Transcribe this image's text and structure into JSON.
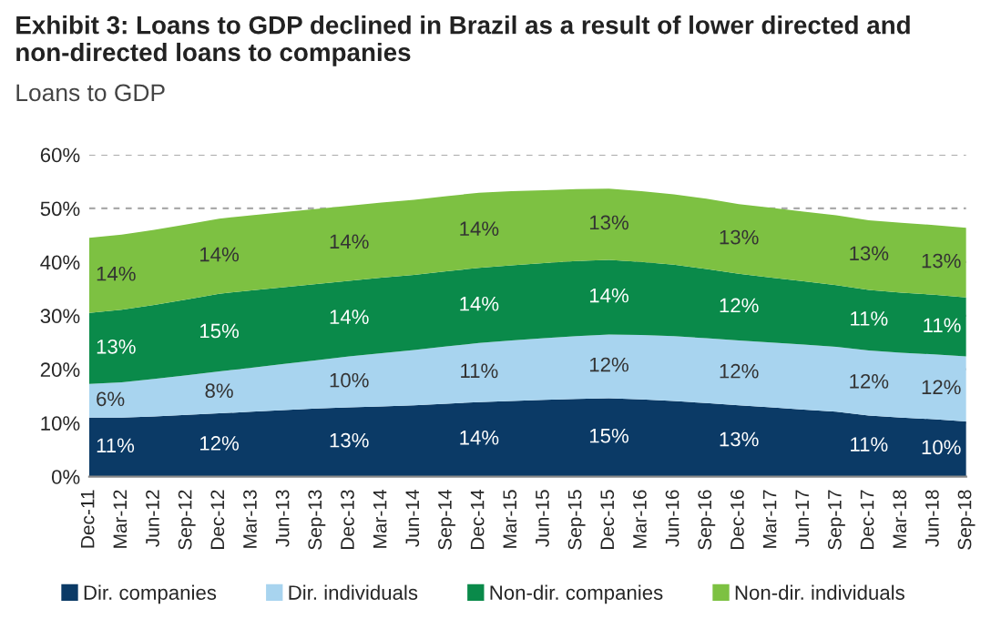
{
  "chart_data": {
    "type": "area",
    "stacked": true,
    "title": "Exhibit 3: Loans to GDP declined in Brazil as a result of lower directed and non-directed loans to companies",
    "subtitle": "Loans to GDP",
    "categories": [
      "Dec-11",
      "Mar-12",
      "Jun-12",
      "Sep-12",
      "Dec-12",
      "Mar-13",
      "Jun-13",
      "Sep-13",
      "Dec-13",
      "Mar-14",
      "Jun-14",
      "Sep-14",
      "Dec-14",
      "Mar-15",
      "Jun-15",
      "Sep-15",
      "Dec-15",
      "Mar-16",
      "Jun-16",
      "Sep-16",
      "Dec-16",
      "Mar-17",
      "Jun-17",
      "Sep-17",
      "Dec-17",
      "Mar-18",
      "Jun-18",
      "Sep-18"
    ],
    "series": [
      {
        "name": "Dir. companies",
        "color": "#0b3a66",
        "values": [
          11,
          11,
          11.2,
          11.5,
          11.8,
          12.1,
          12.4,
          12.7,
          12.9,
          13.1,
          13.3,
          13.6,
          13.9,
          14.1,
          14.3,
          14.5,
          14.6,
          14.4,
          14.1,
          13.7,
          13.3,
          12.9,
          12.5,
          12.1,
          11.4,
          11.0,
          10.7,
          10.3
        ],
        "value_labels": [
          "11%",
          null,
          null,
          null,
          "12%",
          null,
          null,
          null,
          "13%",
          null,
          null,
          null,
          "14%",
          null,
          null,
          null,
          "15%",
          null,
          null,
          null,
          "13%",
          null,
          null,
          null,
          "11%",
          null,
          null,
          "10%"
        ]
      },
      {
        "name": "Dir. individuals",
        "color": "#a8d4ef",
        "values": [
          6.3,
          6.6,
          7,
          7.4,
          7.8,
          8.2,
          8.6,
          9,
          9.5,
          9.9,
          10.3,
          10.7,
          11,
          11.3,
          11.5,
          11.7,
          11.9,
          12,
          12.1,
          12.1,
          12.1,
          12.1,
          12.1,
          12.1,
          12.1,
          12.1,
          12.1,
          12.1
        ],
        "value_labels": [
          "6%",
          null,
          null,
          null,
          "8%",
          null,
          null,
          null,
          "10%",
          null,
          null,
          null,
          "11%",
          null,
          null,
          null,
          "12%",
          null,
          null,
          null,
          "12%",
          null,
          null,
          null,
          "12%",
          null,
          null,
          "12%"
        ]
      },
      {
        "name": "Non-dir. companies",
        "color": "#0a8a4a",
        "values": [
          13.2,
          13.5,
          13.8,
          14.1,
          14.5,
          14.4,
          14.3,
          14.2,
          14.1,
          14.1,
          14,
          14,
          14,
          14,
          14,
          14,
          13.9,
          13.6,
          13.3,
          12.9,
          12.4,
          12.1,
          11.8,
          11.5,
          11.3,
          11.2,
          11.1,
          11.0
        ],
        "value_labels": [
          "13%",
          null,
          null,
          null,
          "15%",
          null,
          null,
          null,
          "14%",
          null,
          null,
          null,
          "14%",
          null,
          null,
          null,
          "14%",
          null,
          null,
          null,
          "12%",
          null,
          null,
          null,
          "11%",
          null,
          null,
          "11%"
        ]
      },
      {
        "name": "Non-dir. individuals",
        "color": "#7dc142",
        "values": [
          14,
          14,
          14,
          14,
          14,
          14,
          14,
          14,
          14,
          14,
          14,
          14,
          14,
          13.8,
          13.6,
          13.4,
          13.3,
          13.2,
          13.1,
          13.1,
          13,
          13,
          13,
          13,
          13,
          13,
          13,
          13
        ],
        "value_labels": [
          "14%",
          null,
          null,
          null,
          "14%",
          null,
          null,
          null,
          "14%",
          null,
          null,
          null,
          "14%",
          null,
          null,
          null,
          "13%",
          null,
          null,
          null,
          "13%",
          null,
          null,
          null,
          "13%",
          null,
          null,
          "13%"
        ]
      }
    ],
    "ylim": [
      0,
      60
    ],
    "yticks": [
      {
        "value": 0,
        "label": "0%"
      },
      {
        "value": 10,
        "label": "10%"
      },
      {
        "value": 20,
        "label": "20%"
      },
      {
        "value": 30,
        "label": "30%"
      },
      {
        "value": 40,
        "label": "40%"
      },
      {
        "value": 50,
        "label": "50%"
      },
      {
        "value": 60,
        "label": "60%"
      }
    ],
    "grid": "y",
    "legend": "bottom"
  }
}
